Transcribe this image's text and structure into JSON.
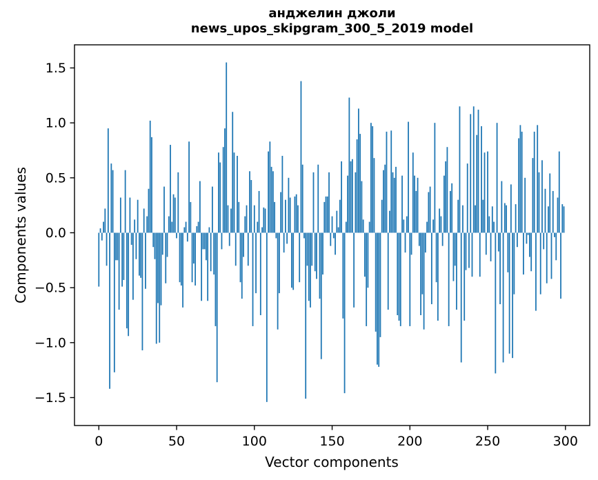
{
  "title": {
    "line1": "анджелин джоли",
    "line2": "news_upos_skipgram_300_5_2019 model"
  },
  "chart_data": {
    "type": "bar",
    "title": "анджелин джоли\nnews_upos_skipgram_300_5_2019 model",
    "xlabel": "Vector components",
    "ylabel": "Components values",
    "legend": "none",
    "grid": false,
    "n_components": 300,
    "x_ticks": [
      0,
      50,
      100,
      150,
      200,
      250,
      300
    ],
    "y_ticks": [
      1.5,
      1.0,
      0.5,
      0.0,
      -0.5,
      -1.0,
      -1.5
    ],
    "y_tick_labels": [
      "1.5",
      "1.0",
      "0.5",
      "0.0",
      "−0.5",
      "−1.0",
      "−1.5"
    ],
    "xlim": [
      -15,
      314
    ],
    "ylim": [
      -1.75,
      1.71
    ],
    "bar_color": "#1f77b4",
    "axis_color": "#000000",
    "values": [
      -0.49,
      0.04,
      -0.07,
      0.1,
      0.22,
      -0.3,
      0.95,
      -1.42,
      0.63,
      0.57,
      -1.27,
      -0.25,
      -0.25,
      -0.7,
      0.32,
      -0.49,
      -0.43,
      0.57,
      -0.87,
      -0.94,
      0.32,
      -0.11,
      -0.61,
      0.12,
      -0.24,
      0.3,
      -0.39,
      -0.41,
      -1.07,
      0.22,
      -0.51,
      0.15,
      0.4,
      1.02,
      0.87,
      -0.13,
      -0.24,
      -1.01,
      -0.64,
      -1.0,
      -0.66,
      -0.2,
      0.42,
      -0.46,
      -0.22,
      0.15,
      0.8,
      0.1,
      0.35,
      0.32,
      -0.05,
      0.55,
      -0.45,
      -0.48,
      -0.68,
      0.05,
      0.1,
      -0.08,
      0.83,
      0.28,
      -0.45,
      -0.28,
      -0.48,
      0.06,
      0.1,
      0.47,
      -0.62,
      -0.15,
      -0.15,
      -0.25,
      -0.62,
      0.05,
      -0.35,
      0.42,
      -0.38,
      -0.85,
      -1.36,
      0.73,
      0.64,
      -0.15,
      0.78,
      0.95,
      1.55,
      0.25,
      -0.12,
      0.22,
      1.1,
      0.73,
      -0.3,
      0.7,
      0.28,
      -0.45,
      -0.6,
      -0.22,
      0.15,
      0.25,
      -0.3,
      0.56,
      0.48,
      -0.85,
      0.25,
      -0.55,
      0.1,
      0.38,
      -0.75,
      0.05,
      0.23,
      0.22,
      -1.54,
      0.74,
      0.83,
      0.6,
      0.56,
      0.28,
      -0.05,
      -0.88,
      -0.55,
      0.37,
      0.7,
      -0.18,
      0.3,
      -0.1,
      0.5,
      0.32,
      -0.5,
      -0.52,
      0.33,
      0.35,
      0.25,
      -0.45,
      1.38,
      0.62,
      -0.05,
      -1.51,
      -0.3,
      -0.62,
      -0.68,
      -0.3,
      0.55,
      -0.35,
      -0.42,
      0.62,
      -0.6,
      -1.15,
      -0.38,
      0.28,
      0.33,
      0.33,
      0.55,
      -0.12,
      0.15,
      -0.05,
      -0.2,
      0.2,
      0.05,
      0.3,
      0.65,
      -0.78,
      -1.46,
      0.1,
      0.52,
      1.23,
      0.65,
      0.67,
      -0.68,
      0.55,
      0.85,
      1.13,
      0.9,
      0.47,
      0.12,
      -0.4,
      -0.85,
      -0.5,
      0.1,
      1.0,
      0.97,
      0.68,
      -0.9,
      -1.2,
      -1.22,
      -0.95,
      0.3,
      0.57,
      0.62,
      0.92,
      -0.7,
      0.2,
      0.93,
      0.55,
      0.5,
      0.6,
      -0.75,
      -0.8,
      -0.85,
      0.52,
      0.12,
      -0.18,
      0.15,
      1.01,
      -0.85,
      -0.2,
      0.73,
      0.52,
      0.38,
      0.5,
      -0.12,
      -0.75,
      -0.56,
      -0.88,
      -0.18,
      0.1,
      0.37,
      0.42,
      -0.65,
      0.12,
      1.0,
      -0.45,
      -0.8,
      0.22,
      0.15,
      -0.12,
      0.52,
      0.65,
      0.78,
      -0.85,
      0.38,
      0.45,
      -0.44,
      -0.3,
      -0.7,
      0.3,
      1.15,
      -1.18,
      0.25,
      -0.8,
      -0.34,
      0.63,
      -0.32,
      1.08,
      -0.4,
      1.15,
      0.25,
      0.89,
      1.12,
      -0.4,
      0.97,
      0.3,
      0.73,
      -0.2,
      0.74,
      0.15,
      -0.26,
      0.24,
      0.1,
      -1.28,
      1.0,
      -0.17,
      -0.65,
      0.47,
      -1.18,
      0.27,
      0.25,
      -0.36,
      -1.1,
      0.44,
      -1.14,
      -0.56,
      0.26,
      -0.13,
      0.86,
      0.98,
      0.92,
      -0.38,
      0.5,
      -0.1,
      -0.02,
      -0.22,
      -0.35,
      0.68,
      0.92,
      -0.71,
      0.98,
      0.55,
      -0.56,
      0.66,
      -0.15,
      0.4,
      -0.46,
      0.24,
      0.54,
      -0.42,
      0.38,
      -0.04,
      -0.25,
      0.32,
      0.74,
      -0.6,
      0.26,
      0.24
    ]
  }
}
